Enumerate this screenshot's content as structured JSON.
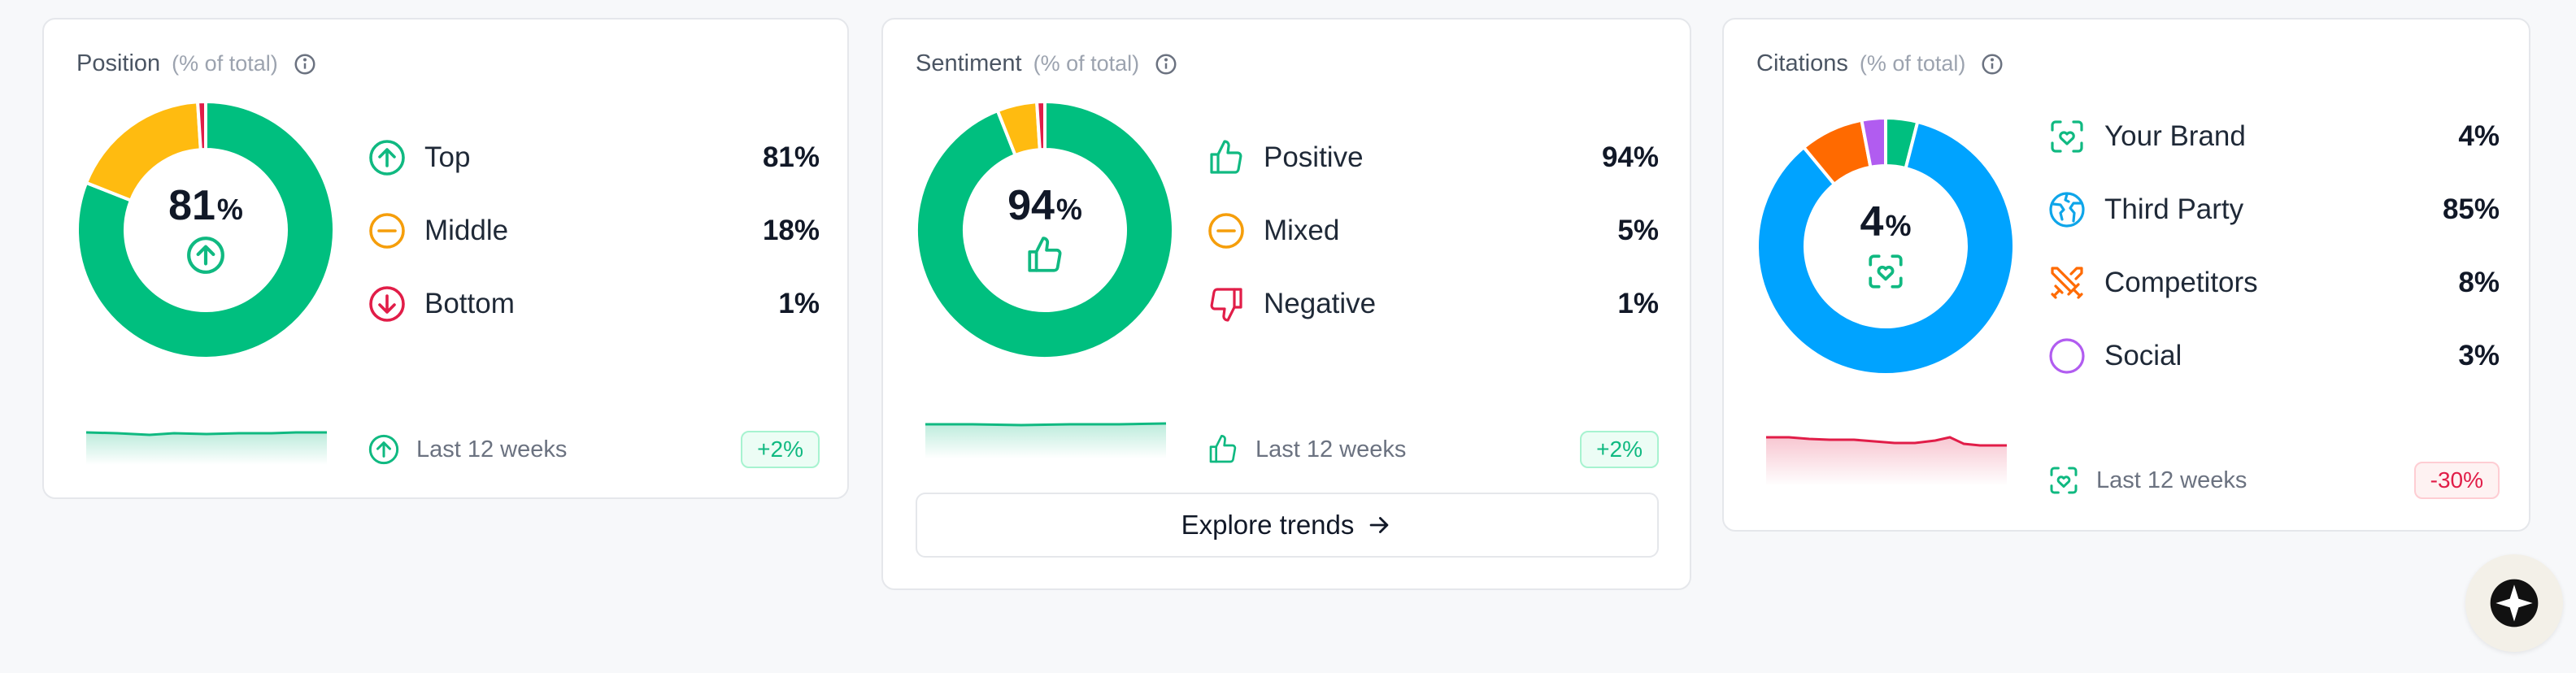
{
  "colors": {
    "green": "#10b981",
    "donut_green": "#00bf7f",
    "yellow": "#ffbb10",
    "red": "#e11d48",
    "orange": "#f59e0b",
    "blue": "#00a3ff",
    "brand_orange": "#ff6a00",
    "purple": "#b15cf0"
  },
  "position": {
    "title": "Position",
    "subtitle": "(% of total)",
    "center_value": "81",
    "center_unit": "%",
    "items": [
      {
        "label": "Top",
        "value": "81%",
        "icon": "arrow-up-circle-icon"
      },
      {
        "label": "Middle",
        "value": "18%",
        "icon": "minus-circle-icon"
      },
      {
        "label": "Bottom",
        "value": "1%",
        "icon": "arrow-down-circle-icon"
      }
    ],
    "slices": [
      81,
      18,
      1
    ],
    "trend_label": "Last 12 weeks",
    "trend_badge": "+2%",
    "trend_direction": "up"
  },
  "sentiment": {
    "title": "Sentiment",
    "subtitle": "(% of total)",
    "center_value": "94",
    "center_unit": "%",
    "items": [
      {
        "label": "Positive",
        "value": "94%",
        "icon": "thumbs-up-icon"
      },
      {
        "label": "Mixed",
        "value": "5%",
        "icon": "minus-circle-icon"
      },
      {
        "label": "Negative",
        "value": "1%",
        "icon": "thumbs-down-icon"
      }
    ],
    "slices": [
      94,
      5,
      1
    ],
    "trend_label": "Last 12 weeks",
    "trend_badge": "+2%",
    "trend_direction": "up",
    "explore_label": "Explore trends"
  },
  "citations": {
    "title": "Citations",
    "subtitle": "(% of total)",
    "center_value": "4",
    "center_unit": "%",
    "items": [
      {
        "label": "Your Brand",
        "value": "4%",
        "icon": "brand-heart-scan-icon"
      },
      {
        "label": "Third Party",
        "value": "85%",
        "icon": "globe-icon"
      },
      {
        "label": "Competitors",
        "value": "8%",
        "icon": "crossed-swords-icon"
      },
      {
        "label": "Social",
        "value": "3%",
        "icon": "circle-icon"
      }
    ],
    "slices": [
      4,
      85,
      8,
      3
    ],
    "trend_label": "Last 12 weeks",
    "trend_badge": "-30%",
    "trend_direction": "down"
  },
  "assistant": {
    "icon": "sparkle-star-icon"
  }
}
